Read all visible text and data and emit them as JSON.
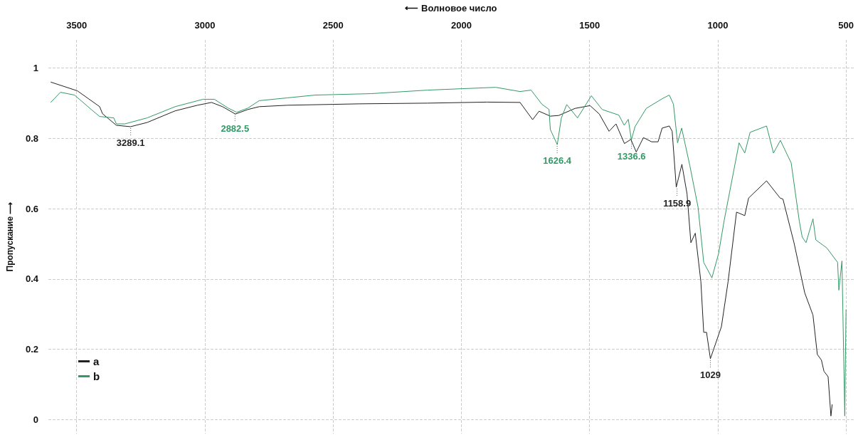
{
  "chart_data": {
    "type": "line",
    "xlabel": "⟵ Волновое число",
    "ylabel": "Пропускание ⟶",
    "xlim": [
      3610,
      470
    ],
    "xticks": [
      3500,
      3000,
      2500,
      2000,
      1500,
      1000,
      500
    ],
    "ylim": [
      -0.04,
      1.08
    ],
    "yticks": [
      0,
      0.2,
      0.4,
      0.6,
      0.8,
      1
    ],
    "grid": true,
    "legend": "bottom left",
    "marker": "none",
    "line_style": "solid",
    "series": [
      {
        "name": "a",
        "color": "#222222",
        "x": [
          3601,
          3497,
          3410,
          3399,
          3345,
          3290,
          3225,
          3116,
          3029,
          2974,
          2931,
          2881,
          2832,
          2788,
          2679,
          2400,
          2133,
          1900,
          1771,
          1722,
          1697,
          1653,
          1620,
          1557,
          1498,
          1462,
          1424,
          1397,
          1364,
          1339,
          1318,
          1290,
          1258,
          1233,
          1217,
          1189,
          1178,
          1162,
          1140,
          1120,
          1105,
          1088,
          1066,
          1055,
          1044,
          1029,
          986,
          960,
          927,
          917,
          895,
          880,
          810,
          757,
          746,
          703,
          661,
          629,
          612,
          596,
          586,
          570,
          559,
          554
        ],
        "values": [
          0.96,
          0.935,
          0.89,
          0.87,
          0.837,
          0.833,
          0.845,
          0.878,
          0.894,
          0.902,
          0.89,
          0.869,
          0.882,
          0.89,
          0.894,
          0.898,
          0.9,
          0.903,
          0.902,
          0.853,
          0.877,
          0.863,
          0.865,
          0.885,
          0.893,
          0.869,
          0.82,
          0.841,
          0.785,
          0.797,
          0.761,
          0.802,
          0.79,
          0.79,
          0.829,
          0.835,
          0.82,
          0.661,
          0.726,
          0.642,
          0.503,
          0.53,
          0.392,
          0.248,
          0.248,
          0.173,
          0.264,
          0.392,
          0.59,
          0.587,
          0.58,
          0.63,
          0.679,
          0.63,
          0.627,
          0.503,
          0.36,
          0.297,
          0.185,
          0.169,
          0.137,
          0.122,
          0.01,
          0.043
        ]
      },
      {
        "name": "b",
        "color": "#339966",
        "x": [
          3601,
          3563,
          3508,
          3443,
          3410,
          3355,
          3345,
          3312,
          3225,
          3116,
          3007,
          2963,
          2909,
          2876,
          2832,
          2788,
          2679,
          2570,
          2352,
          2133,
          1866,
          1771,
          1728,
          1686,
          1658,
          1653,
          1626,
          1610,
          1589,
          1547,
          1493,
          1451,
          1386,
          1365,
          1349,
          1337,
          1323,
          1279,
          1216,
          1189,
          1173,
          1157,
          1141,
          1109,
          1077,
          1055,
          1023,
          997,
          975,
          917,
          895,
          874,
          810,
          783,
          756,
          714,
          682,
          671,
          656,
          629,
          618,
          575,
          533,
          528,
          516,
          505,
          500
        ],
        "values": [
          0.902,
          0.931,
          0.923,
          0.882,
          0.862,
          0.858,
          0.841,
          0.841,
          0.858,
          0.89,
          0.911,
          0.911,
          0.886,
          0.874,
          0.886,
          0.907,
          0.915,
          0.923,
          0.927,
          0.937,
          0.945,
          0.933,
          0.937,
          0.897,
          0.882,
          0.825,
          0.782,
          0.858,
          0.896,
          0.858,
          0.921,
          0.882,
          0.866,
          0.837,
          0.854,
          0.795,
          0.833,
          0.885,
          0.913,
          0.923,
          0.897,
          0.787,
          0.829,
          0.722,
          0.604,
          0.447,
          0.403,
          0.472,
          0.567,
          0.787,
          0.758,
          0.817,
          0.835,
          0.758,
          0.794,
          0.73,
          0.563,
          0.519,
          0.503,
          0.571,
          0.511,
          0.488,
          0.447,
          0.368,
          0.451,
          0.01,
          0.313
        ]
      }
    ],
    "annotations": [
      {
        "text": "3289.1",
        "x": 3289.1,
        "y": 0.833
      },
      {
        "text": "2882.5",
        "x": 2882.5,
        "y": 0.874
      },
      {
        "text": "1626.4",
        "x": 1626.4,
        "y": 0.782
      },
      {
        "text": "1336.6",
        "x": 1336.6,
        "y": 0.795
      },
      {
        "text": "1158.9",
        "x": 1158.9,
        "y": 0.661
      },
      {
        "text": "1029",
        "x": 1029,
        "y": 0.173
      }
    ]
  }
}
